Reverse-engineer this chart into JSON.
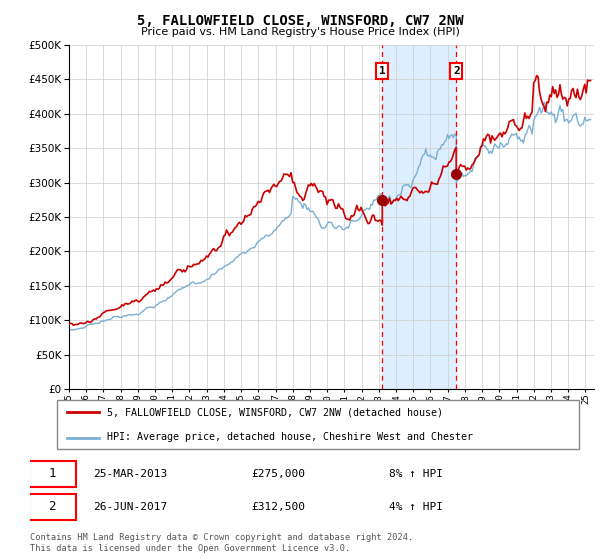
{
  "title": "5, FALLOWFIELD CLOSE, WINSFORD, CW7 2NW",
  "subtitle": "Price paid vs. HM Land Registry's House Price Index (HPI)",
  "legend_line1": "5, FALLOWFIELD CLOSE, WINSFORD, CW7 2NW (detached house)",
  "legend_line2": "HPI: Average price, detached house, Cheshire West and Chester",
  "transaction1_date": "25-MAR-2013",
  "transaction1_price": "£275,000",
  "transaction1_hpi": "8% ↑ HPI",
  "transaction2_date": "26-JUN-2017",
  "transaction2_price": "£312,500",
  "transaction2_hpi": "4% ↑ HPI",
  "footnote": "Contains HM Land Registry data © Crown copyright and database right 2024.\nThis data is licensed under the Open Government Licence v3.0.",
  "hpi_color": "#7bafd4",
  "price_color": "#cc0000",
  "marker_color": "#990000",
  "shaded_color": "#ddeeff",
  "transaction1_x": 2013.2,
  "transaction2_x": 2017.5,
  "t1_price_val": 275000,
  "t2_price_val": 312500,
  "ylim_min": 0,
  "ylim_max": 500000,
  "xlim_min": 1995,
  "xlim_max": 2025.5
}
